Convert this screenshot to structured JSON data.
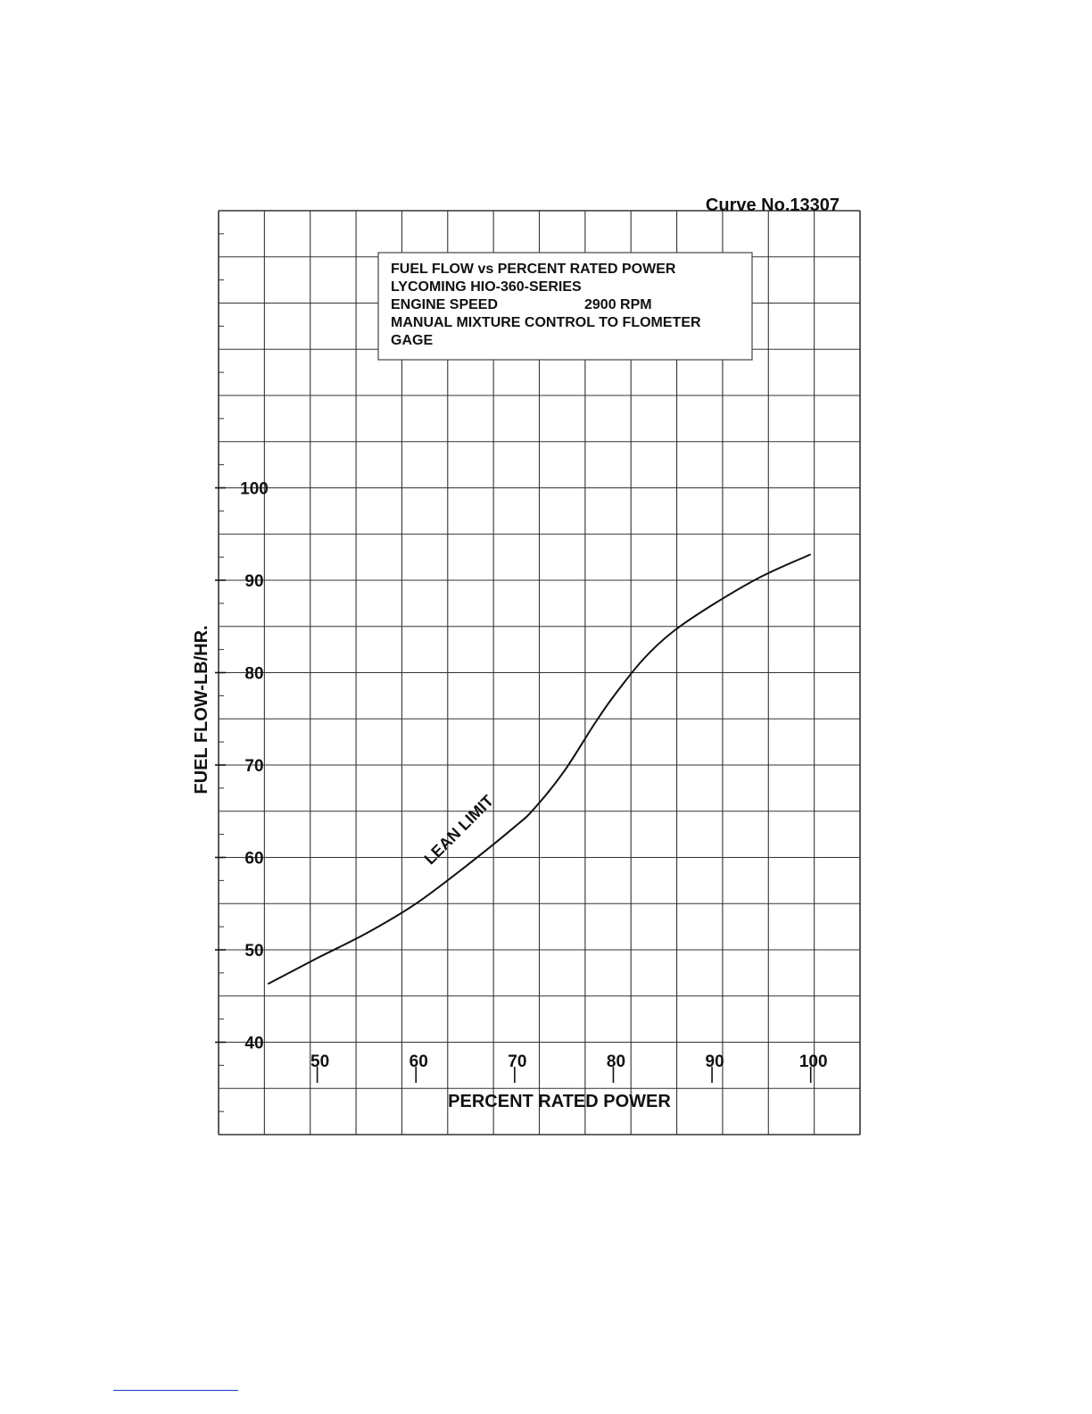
{
  "chart_data": {
    "type": "line",
    "curve_number": "Curve No.13307",
    "title_lines": [
      "FUEL FLOW vs PERCENT RATED POWER",
      "LYCOMING HIO-360-SERIES",
      "ENGINE SPEED",
      "MANUAL MIXTURE CONTROL TO FLOMETER",
      "GAGE"
    ],
    "engine_speed_value": "2900 RPM",
    "xlabel": "PERCENT RATED POWER",
    "ylabel": "FUEL FLOW-LB/HR.",
    "x_ticks": [
      {
        "value": 50,
        "label": "50"
      },
      {
        "value": 60,
        "label": "60"
      },
      {
        "value": 70,
        "label": "70"
      },
      {
        "value": 80,
        "label": "80"
      },
      {
        "value": 90,
        "label": "90"
      },
      {
        "value": 100,
        "label": "100"
      }
    ],
    "y_ticks": [
      {
        "value": 40,
        "label": "40"
      },
      {
        "value": 50,
        "label": "50"
      },
      {
        "value": 60,
        "label": "60"
      },
      {
        "value": 70,
        "label": "70"
      },
      {
        "value": 80,
        "label": "80"
      },
      {
        "value": 90,
        "label": "90"
      },
      {
        "value": 100,
        "label": "100"
      }
    ],
    "xlim": [
      40,
      105
    ],
    "ylim": [
      30,
      130
    ],
    "grid": true,
    "series": [
      {
        "x": [
          45,
          50,
          55,
          60,
          65,
          70,
          72,
          75,
          78,
          80,
          83,
          86,
          90,
          95,
          100
        ],
        "y": [
          46.3,
          49.1,
          51.8,
          55.0,
          59.0,
          63.3,
          65.3,
          69.3,
          74.3,
          77.4,
          81.4,
          84.4,
          87.3,
          90.4,
          92.8
        ]
      }
    ],
    "annotations": [
      {
        "text": "LEAN LIMIT",
        "x": 66,
        "y": 62,
        "angle": -45
      }
    ]
  }
}
